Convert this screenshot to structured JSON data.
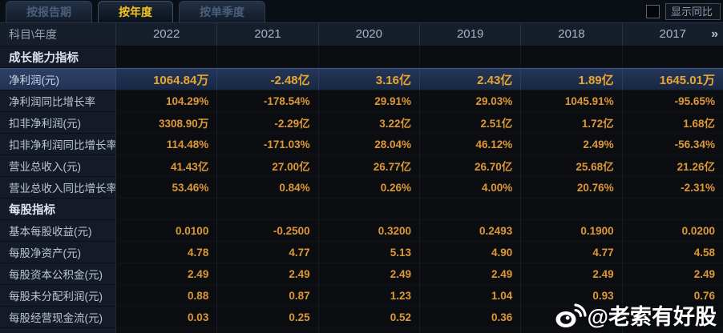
{
  "tabs": [
    {
      "label": "按报告期",
      "active": false
    },
    {
      "label": "按年度",
      "active": true
    },
    {
      "label": "按单季度",
      "active": false
    }
  ],
  "controls": {
    "show_yoy_label": "显示同比",
    "checkbox_checked": false
  },
  "table": {
    "corner_label": "科目\\年度",
    "years": [
      "2022",
      "2021",
      "2020",
      "2019",
      "2018",
      "2017"
    ],
    "more_icon": "»",
    "rows": [
      {
        "label": "成长能力指标",
        "type": "section",
        "values": [
          "",
          "",
          "",
          "",
          "",
          ""
        ]
      },
      {
        "label": "净利润(元)",
        "type": "highlight",
        "values": [
          "1064.84万",
          "-2.48亿",
          "3.16亿",
          "2.43亿",
          "1.89亿",
          "1645.01万"
        ]
      },
      {
        "label": "净利润同比增长率",
        "type": "data",
        "values": [
          "104.29%",
          "-178.54%",
          "29.91%",
          "29.03%",
          "1045.91%",
          "-95.65%"
        ]
      },
      {
        "label": "扣非净利润(元)",
        "type": "data",
        "values": [
          "3308.90万",
          "-2.29亿",
          "3.22亿",
          "2.51亿",
          "1.72亿",
          "1.68亿"
        ]
      },
      {
        "label": "扣非净利润同比增长率",
        "type": "data",
        "values": [
          "114.48%",
          "-171.03%",
          "28.04%",
          "46.12%",
          "2.49%",
          "-56.34%"
        ]
      },
      {
        "label": "营业总收入(元)",
        "type": "data",
        "values": [
          "41.43亿",
          "27.00亿",
          "26.77亿",
          "26.70亿",
          "25.68亿",
          "21.26亿"
        ]
      },
      {
        "label": "营业总收入同比增长率",
        "type": "data",
        "values": [
          "53.46%",
          "0.84%",
          "0.26%",
          "4.00%",
          "20.76%",
          "-2.31%"
        ]
      },
      {
        "label": "每股指标",
        "type": "section",
        "values": [
          "",
          "",
          "",
          "",
          "",
          ""
        ]
      },
      {
        "label": "基本每股收益(元)",
        "type": "data",
        "values": [
          "0.0100",
          "-0.2500",
          "0.3200",
          "0.2493",
          "0.1900",
          "0.0200"
        ]
      },
      {
        "label": "每股净资产(元)",
        "type": "data",
        "values": [
          "4.78",
          "4.77",
          "5.13",
          "4.90",
          "4.77",
          "4.58"
        ]
      },
      {
        "label": "每股资本公积金(元)",
        "type": "data",
        "values": [
          "2.49",
          "2.49",
          "2.49",
          "2.49",
          "2.49",
          "2.49"
        ]
      },
      {
        "label": "每股未分配利润(元)",
        "type": "data",
        "values": [
          "0.88",
          "0.87",
          "1.23",
          "1.04",
          "0.93",
          "0.76"
        ]
      },
      {
        "label": "每股经营现金流(元)",
        "type": "data",
        "values": [
          "0.03",
          "0.25",
          "0.52",
          "0.36",
          "",
          ""
        ]
      }
    ]
  },
  "watermark": {
    "text": "@老索有好股",
    "icon": "weibo"
  },
  "colors": {
    "active_tab_text": "#f4c41c",
    "value_text": "#dd9837",
    "highlight_value_text": "#e8a62f",
    "highlight_row_bg": "#22345a",
    "label_column_bg": "#151b26",
    "header_row_bg": "#161e2c",
    "page_bg": "#05070b"
  }
}
